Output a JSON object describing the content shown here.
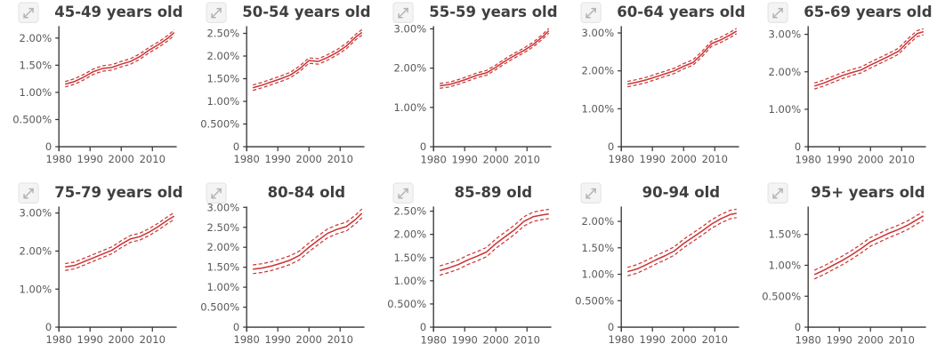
{
  "app": {
    "background": "#ffffff",
    "description": "Small multiples of trend line charts by age group with confidence intervals"
  },
  "style": {
    "line_color": "#cc3333",
    "title_color": "#3f3f3f",
    "tick_color": "#58585c",
    "axis_color": "#333333",
    "icon_bg": "#f4f4f4",
    "icon_border": "#e2e2e2",
    "icon_glyph": "#b3b3b3"
  },
  "icons": {
    "expand": "diagonal-expand-arrow"
  },
  "chart_data": [
    {
      "type": "line",
      "title": "45-49 years old",
      "x": [
        1982,
        1985,
        1988,
        1991,
        1994,
        1997,
        2000,
        2003,
        2006,
        2009,
        2012,
        2015,
        2017
      ],
      "series": [
        {
          "name": "estimate",
          "style": "solid",
          "values": [
            1.15,
            1.2,
            1.28,
            1.38,
            1.44,
            1.46,
            1.52,
            1.57,
            1.66,
            1.78,
            1.88,
            2.0,
            2.1
          ]
        },
        {
          "name": "lower CI",
          "style": "dashed",
          "values": [
            1.1,
            1.15,
            1.23,
            1.33,
            1.39,
            1.41,
            1.47,
            1.52,
            1.61,
            1.73,
            1.83,
            1.95,
            2.05
          ]
        },
        {
          "name": "upper CI",
          "style": "dashed",
          "values": [
            1.2,
            1.25,
            1.33,
            1.43,
            1.49,
            1.51,
            1.57,
            1.62,
            1.71,
            1.83,
            1.93,
            2.05,
            2.15
          ]
        }
      ],
      "xlim": [
        1980,
        2017.8
      ],
      "ylim": [
        0,
        2.22
      ],
      "xticks": [
        1980,
        1990,
        2000,
        2010
      ],
      "yticks": [
        {
          "v": 0,
          "label": "0"
        },
        {
          "v": 0.5,
          "label": "0.500%"
        },
        {
          "v": 1,
          "label": "1.00%"
        },
        {
          "v": 1.5,
          "label": "1.50%"
        },
        {
          "v": 2,
          "label": "2.00%"
        }
      ]
    },
    {
      "type": "line",
      "title": "50-54 years old",
      "x": [
        1982,
        1985,
        1988,
        1991,
        1994,
        1997,
        2000,
        2003,
        2006,
        2009,
        2012,
        2015,
        2017
      ],
      "series": [
        {
          "name": "estimate",
          "style": "solid",
          "values": [
            1.3,
            1.36,
            1.43,
            1.5,
            1.58,
            1.72,
            1.9,
            1.88,
            1.97,
            2.08,
            2.22,
            2.42,
            2.52
          ]
        },
        {
          "name": "lower CI",
          "style": "dashed",
          "values": [
            1.24,
            1.3,
            1.37,
            1.44,
            1.52,
            1.66,
            1.84,
            1.82,
            1.91,
            2.02,
            2.16,
            2.36,
            2.46
          ]
        },
        {
          "name": "upper CI",
          "style": "dashed",
          "values": [
            1.36,
            1.42,
            1.49,
            1.56,
            1.64,
            1.78,
            1.96,
            1.94,
            2.03,
            2.14,
            2.28,
            2.48,
            2.58
          ]
        }
      ],
      "xlim": [
        1980,
        2017.8
      ],
      "ylim": [
        0,
        2.66
      ],
      "xticks": [
        1980,
        1990,
        2000,
        2010
      ],
      "yticks": [
        {
          "v": 0,
          "label": "0"
        },
        {
          "v": 0.5,
          "label": "0.500%"
        },
        {
          "v": 1,
          "label": "1.00%"
        },
        {
          "v": 1.5,
          "label": "1.50%"
        },
        {
          "v": 2,
          "label": "2.00%"
        },
        {
          "v": 2.5,
          "label": "2.50%"
        }
      ]
    },
    {
      "type": "line",
      "title": "55-59 years old",
      "x": [
        1982,
        1985,
        1988,
        1991,
        1994,
        1997,
        2000,
        2003,
        2006,
        2009,
        2012,
        2015,
        2017
      ],
      "series": [
        {
          "name": "estimate",
          "style": "solid",
          "values": [
            1.55,
            1.58,
            1.65,
            1.73,
            1.82,
            1.88,
            2.02,
            2.18,
            2.32,
            2.45,
            2.6,
            2.8,
            2.95
          ]
        },
        {
          "name": "lower CI",
          "style": "dashed",
          "values": [
            1.49,
            1.52,
            1.59,
            1.67,
            1.76,
            1.82,
            1.96,
            2.12,
            2.26,
            2.39,
            2.54,
            2.74,
            2.89
          ]
        },
        {
          "name": "upper CI",
          "style": "dashed",
          "values": [
            1.61,
            1.64,
            1.71,
            1.79,
            1.88,
            1.94,
            2.08,
            2.24,
            2.38,
            2.51,
            2.66,
            2.86,
            3.01
          ]
        }
      ],
      "xlim": [
        1980,
        2017.8
      ],
      "ylim": [
        0,
        3.07
      ],
      "xticks": [
        1980,
        1990,
        2000,
        2010
      ],
      "yticks": [
        {
          "v": 0,
          "label": "0"
        },
        {
          "v": 1,
          "label": "1.00%"
        },
        {
          "v": 2,
          "label": "2.00%"
        },
        {
          "v": 3,
          "label": "3.00%"
        }
      ]
    },
    {
      "type": "line",
      "title": "60-64 years old",
      "x": [
        1982,
        1985,
        1988,
        1991,
        1994,
        1997,
        2000,
        2003,
        2006,
        2009,
        2012,
        2015,
        2017
      ],
      "series": [
        {
          "name": "estimate",
          "style": "solid",
          "values": [
            1.65,
            1.7,
            1.76,
            1.84,
            1.92,
            2.0,
            2.12,
            2.22,
            2.45,
            2.72,
            2.82,
            2.95,
            3.05
          ]
        },
        {
          "name": "lower CI",
          "style": "dashed",
          "values": [
            1.58,
            1.63,
            1.69,
            1.77,
            1.85,
            1.93,
            2.05,
            2.15,
            2.38,
            2.65,
            2.75,
            2.88,
            2.98
          ]
        },
        {
          "name": "upper CI",
          "style": "dashed",
          "values": [
            1.72,
            1.77,
            1.83,
            1.91,
            1.99,
            2.07,
            2.19,
            2.29,
            2.52,
            2.79,
            2.89,
            3.02,
            3.12
          ]
        }
      ],
      "xlim": [
        1980,
        2017.8
      ],
      "ylim": [
        0,
        3.18
      ],
      "xticks": [
        1980,
        1990,
        2000,
        2010
      ],
      "yticks": [
        {
          "v": 0,
          "label": "0"
        },
        {
          "v": 1,
          "label": "1.00%"
        },
        {
          "v": 2,
          "label": "2.00%"
        },
        {
          "v": 3,
          "label": "3.00%"
        }
      ]
    },
    {
      "type": "line",
      "title": "65-69 years old",
      "x": [
        1982,
        1985,
        1988,
        1991,
        1994,
        1997,
        2000,
        2003,
        2006,
        2009,
        2012,
        2015,
        2017
      ],
      "series": [
        {
          "name": "estimate",
          "style": "solid",
          "values": [
            1.62,
            1.7,
            1.8,
            1.9,
            1.98,
            2.05,
            2.18,
            2.3,
            2.42,
            2.55,
            2.8,
            3.02,
            3.07
          ]
        },
        {
          "name": "lower CI",
          "style": "dashed",
          "values": [
            1.54,
            1.62,
            1.72,
            1.82,
            1.9,
            1.97,
            2.1,
            2.22,
            2.34,
            2.47,
            2.72,
            2.94,
            2.99
          ]
        },
        {
          "name": "upper CI",
          "style": "dashed",
          "values": [
            1.7,
            1.78,
            1.88,
            1.98,
            2.06,
            2.13,
            2.26,
            2.38,
            2.5,
            2.63,
            2.88,
            3.1,
            3.15
          ]
        }
      ],
      "xlim": [
        1980,
        2017.8
      ],
      "ylim": [
        0,
        3.22
      ],
      "xticks": [
        1980,
        1990,
        2000,
        2010
      ],
      "yticks": [
        {
          "v": 0,
          "label": "0"
        },
        {
          "v": 1,
          "label": "1.00%"
        },
        {
          "v": 2,
          "label": "2.00%"
        },
        {
          "v": 3,
          "label": "3.00%"
        }
      ]
    },
    {
      "type": "line",
      "title": "75-79 years old",
      "x": [
        1982,
        1985,
        1988,
        1991,
        1994,
        1997,
        2000,
        2003,
        2006,
        2009,
        2012,
        2015,
        2017
      ],
      "series": [
        {
          "name": "estimate",
          "style": "solid",
          "values": [
            1.58,
            1.62,
            1.72,
            1.82,
            1.92,
            2.02,
            2.18,
            2.32,
            2.38,
            2.5,
            2.65,
            2.82,
            2.92
          ]
        },
        {
          "name": "lower CI",
          "style": "dashed",
          "values": [
            1.49,
            1.53,
            1.63,
            1.73,
            1.83,
            1.93,
            2.09,
            2.23,
            2.29,
            2.41,
            2.56,
            2.73,
            2.83
          ]
        },
        {
          "name": "upper CI",
          "style": "dashed",
          "values": [
            1.67,
            1.71,
            1.81,
            1.91,
            2.01,
            2.11,
            2.27,
            2.41,
            2.47,
            2.59,
            2.74,
            2.91,
            3.01
          ]
        }
      ],
      "xlim": [
        1980,
        2017.8
      ],
      "ylim": [
        0,
        3.17
      ],
      "xticks": [
        1980,
        1990,
        2000,
        2010
      ],
      "yticks": [
        {
          "v": 0,
          "label": "0"
        },
        {
          "v": 1,
          "label": "1.00%"
        },
        {
          "v": 2,
          "label": "2.00%"
        },
        {
          "v": 3,
          "label": "3.00%"
        }
      ]
    },
    {
      "type": "line",
      "title": "80-84 old",
      "x": [
        1982,
        1985,
        1988,
        1991,
        1994,
        1997,
        2000,
        2003,
        2006,
        2009,
        2012,
        2015,
        2017
      ],
      "series": [
        {
          "name": "estimate",
          "style": "solid",
          "values": [
            1.45,
            1.48,
            1.53,
            1.6,
            1.68,
            1.8,
            2.0,
            2.18,
            2.35,
            2.45,
            2.52,
            2.7,
            2.85
          ]
        },
        {
          "name": "lower CI",
          "style": "dashed",
          "values": [
            1.34,
            1.37,
            1.42,
            1.49,
            1.57,
            1.69,
            1.89,
            2.07,
            2.24,
            2.34,
            2.41,
            2.59,
            2.74
          ]
        },
        {
          "name": "upper CI",
          "style": "dashed",
          "values": [
            1.56,
            1.59,
            1.64,
            1.71,
            1.79,
            1.91,
            2.11,
            2.29,
            2.46,
            2.56,
            2.63,
            2.81,
            2.96
          ]
        }
      ],
      "xlim": [
        1980,
        2017.8
      ],
      "ylim": [
        0,
        3.02
      ],
      "xticks": [
        1980,
        1990,
        2000,
        2010
      ],
      "yticks": [
        {
          "v": 0,
          "label": "0"
        },
        {
          "v": 0.5,
          "label": "0.500%"
        },
        {
          "v": 1,
          "label": "1.00%"
        },
        {
          "v": 1.5,
          "label": "1.50%"
        },
        {
          "v": 2,
          "label": "2.00%"
        },
        {
          "v": 2.5,
          "label": "2.50%"
        },
        {
          "v": 3,
          "label": "3.00%"
        }
      ]
    },
    {
      "type": "line",
      "title": "85-89 old",
      "x": [
        1982,
        1985,
        1988,
        1991,
        1994,
        1997,
        2000,
        2003,
        2006,
        2009,
        2012,
        2015,
        2017
      ],
      "series": [
        {
          "name": "estimate",
          "style": "solid",
          "values": [
            1.22,
            1.28,
            1.35,
            1.45,
            1.53,
            1.62,
            1.8,
            1.95,
            2.1,
            2.28,
            2.38,
            2.42,
            2.44
          ]
        },
        {
          "name": "lower CI",
          "style": "dashed",
          "values": [
            1.12,
            1.18,
            1.25,
            1.35,
            1.43,
            1.52,
            1.7,
            1.85,
            2.0,
            2.18,
            2.28,
            2.32,
            2.34
          ]
        },
        {
          "name": "upper CI",
          "style": "dashed",
          "values": [
            1.32,
            1.38,
            1.45,
            1.55,
            1.63,
            1.72,
            1.9,
            2.05,
            2.2,
            2.38,
            2.48,
            2.52,
            2.54
          ]
        }
      ],
      "xlim": [
        1980,
        2017.8
      ],
      "ylim": [
        0,
        2.6
      ],
      "xticks": [
        1980,
        1990,
        2000,
        2010
      ],
      "yticks": [
        {
          "v": 0,
          "label": "0"
        },
        {
          "v": 0.5,
          "label": "0.500%"
        },
        {
          "v": 1,
          "label": "1.00%"
        },
        {
          "v": 1.5,
          "label": "1.50%"
        },
        {
          "v": 2,
          "label": "2.00%"
        },
        {
          "v": 2.5,
          "label": "2.50%"
        }
      ]
    },
    {
      "type": "line",
      "title": "90-94 old",
      "x": [
        1982,
        1985,
        1988,
        1991,
        1994,
        1997,
        2000,
        2003,
        2006,
        2009,
        2012,
        2015,
        2017
      ],
      "series": [
        {
          "name": "estimate",
          "style": "solid",
          "values": [
            1.05,
            1.1,
            1.18,
            1.27,
            1.35,
            1.44,
            1.58,
            1.7,
            1.82,
            1.95,
            2.05,
            2.13,
            2.15
          ]
        },
        {
          "name": "lower CI",
          "style": "dashed",
          "values": [
            0.97,
            1.02,
            1.1,
            1.19,
            1.27,
            1.36,
            1.5,
            1.62,
            1.74,
            1.87,
            1.97,
            2.05,
            2.07
          ]
        },
        {
          "name": "upper CI",
          "style": "dashed",
          "values": [
            1.13,
            1.18,
            1.26,
            1.35,
            1.43,
            1.52,
            1.66,
            1.78,
            1.9,
            2.03,
            2.13,
            2.21,
            2.23
          ]
        }
      ],
      "xlim": [
        1980,
        2017.8
      ],
      "ylim": [
        0,
        2.28
      ],
      "xticks": [
        1980,
        1990,
        2000,
        2010
      ],
      "yticks": [
        {
          "v": 0,
          "label": "0"
        },
        {
          "v": 0.5,
          "label": "0.500%"
        },
        {
          "v": 1,
          "label": "1.00%"
        },
        {
          "v": 1.5,
          "label": "1.50%"
        },
        {
          "v": 2,
          "label": "2.00%"
        }
      ]
    },
    {
      "type": "line",
      "title": "95+ years old",
      "x": [
        1982,
        1985,
        1988,
        1991,
        1994,
        1997,
        2000,
        2003,
        2006,
        2009,
        2012,
        2015,
        2017
      ],
      "series": [
        {
          "name": "estimate",
          "style": "solid",
          "values": [
            0.85,
            0.92,
            1.0,
            1.08,
            1.17,
            1.27,
            1.38,
            1.45,
            1.52,
            1.58,
            1.65,
            1.74,
            1.8
          ]
        },
        {
          "name": "lower CI",
          "style": "dashed",
          "values": [
            0.78,
            0.85,
            0.93,
            1.01,
            1.1,
            1.2,
            1.31,
            1.38,
            1.45,
            1.51,
            1.58,
            1.67,
            1.73
          ]
        },
        {
          "name": "upper CI",
          "style": "dashed",
          "values": [
            0.92,
            0.99,
            1.07,
            1.15,
            1.24,
            1.34,
            1.45,
            1.52,
            1.59,
            1.65,
            1.72,
            1.81,
            1.87
          ]
        }
      ],
      "xlim": [
        1980,
        2017.8
      ],
      "ylim": [
        0,
        1.95
      ],
      "xticks": [
        1980,
        1990,
        2000,
        2010
      ],
      "yticks": [
        {
          "v": 0,
          "label": "0"
        },
        {
          "v": 0.5,
          "label": "0.500%"
        },
        {
          "v": 1,
          "label": "1.00%"
        },
        {
          "v": 1.5,
          "label": "1.50%"
        }
      ]
    }
  ]
}
